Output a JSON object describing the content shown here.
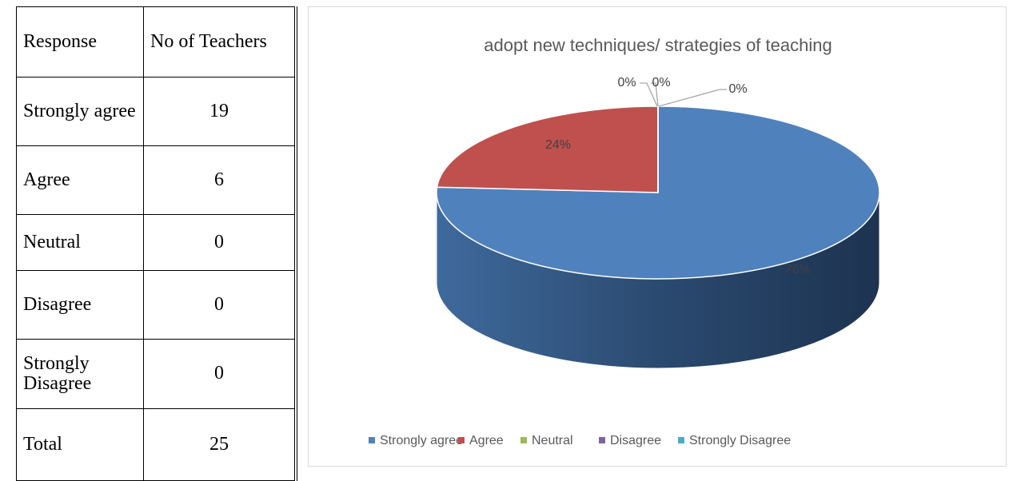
{
  "table": {
    "header": [
      "Response",
      "No of Teachers"
    ],
    "rows": [
      [
        "Strongly agree",
        19
      ],
      [
        "Agree",
        6
      ],
      [
        "Neutral",
        0
      ],
      [
        "Disagree",
        0
      ],
      [
        "Strongly Disagree",
        0
      ],
      [
        "Total",
        25
      ]
    ]
  },
  "chart_data": {
    "type": "pie",
    "title": "adopt new techniques/ strategies of teaching",
    "categories": [
      "Strongly agree",
      "Agree",
      "Neutral",
      "Disagree",
      "Strongly Disagree"
    ],
    "values": [
      76,
      24,
      0,
      0,
      0
    ],
    "value_labels": [
      "76%",
      "24%",
      "0%",
      "0%",
      "0%"
    ],
    "colors": [
      "#4f81bd",
      "#c0504d",
      "#9bbb59",
      "#8064a2",
      "#4bacc6"
    ],
    "legend": "bottom"
  }
}
